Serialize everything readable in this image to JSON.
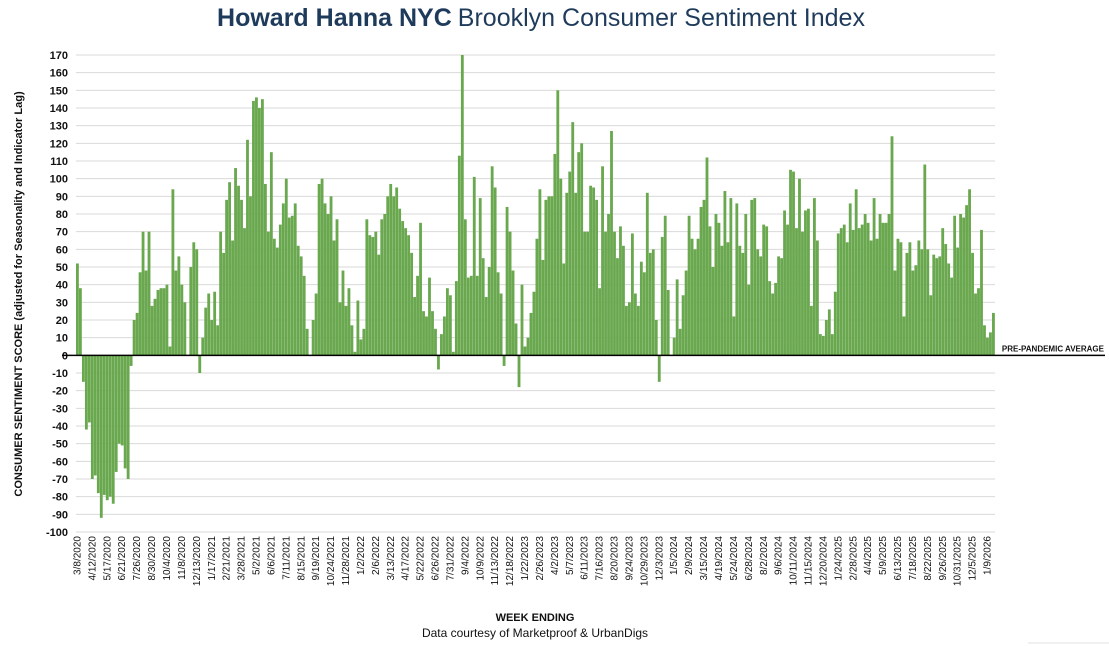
{
  "chart_data": {
    "type": "bar",
    "title_brand": "Howard Hanna NYC",
    "title_rest": "Brooklyn Consumer Sentiment Index",
    "ylabel": "CONSUMER SENTIMENT SCORE (adjusted for Seasonality and Indicator Lag)",
    "xlabel": "WEEK ENDING",
    "source": "Data courtesy of Marketproof & UrbanDigs",
    "reference_line": {
      "value": 0,
      "label": "PRE-PANDEMIC AVERAGE"
    },
    "ylim": [
      -100,
      170
    ],
    "y_ticks": [
      170,
      160,
      150,
      140,
      130,
      120,
      110,
      100,
      90,
      80,
      70,
      60,
      50,
      40,
      30,
      20,
      10,
      0,
      -10,
      -20,
      -30,
      -40,
      -50,
      -60,
      -70,
      -80,
      -90,
      -100
    ],
    "grid": true,
    "colors": {
      "bar": "#6aa84f",
      "title": "#1f3b5c",
      "grid": "#d9d9d9",
      "axis": "#000000"
    },
    "x_tick_labels": [
      "3/8/2020",
      "4/12/2020",
      "5/17/2020",
      "6/21/2020",
      "7/26/2020",
      "8/30/2020",
      "10/4/2020",
      "11/8/2020",
      "12/13/2020",
      "1/17/2021",
      "2/21/2021",
      "3/28/2021",
      "5/2/2021",
      "6/6/2021",
      "7/11/2021",
      "8/15/2021",
      "9/19/2021",
      "10/24/2021",
      "11/28/2021",
      "1/2/2022",
      "2/6/2022",
      "3/13/2022",
      "4/17/2022",
      "5/22/2022",
      "6/26/2022",
      "7/31/2022",
      "9/4/2022",
      "10/9/2022",
      "11/13/2022",
      "12/18/2022",
      "1/22/2023",
      "2/26/2023",
      "4/2/2023",
      "5/7/2023",
      "6/11/2023",
      "7/16/2023",
      "8/20/2023",
      "9/24/2023",
      "10/29/2023",
      "12/3/2023",
      "1/5/2024",
      "2/9/2024",
      "3/15/2024",
      "4/19/2024",
      "5/24/2024",
      "6/28/2024",
      "8/2/2024",
      "9/6/2024",
      "10/11/2024",
      "11/15/2024",
      "12/20/2024",
      "1/24/2025",
      "2/28/2025",
      "4/4/2025",
      "5/9/2025",
      "6/13/2025",
      "7/18/2025",
      "8/22/2025",
      "9/26/2025",
      "10/31/2025",
      "12/5/2025",
      "1/9/2026"
    ],
    "x_tick_start_week": [
      0,
      5,
      10,
      15,
      20,
      25,
      30,
      35,
      40,
      45,
      50,
      55,
      60,
      65,
      70,
      75,
      80,
      85,
      90,
      95,
      100,
      105,
      110,
      115,
      120,
      125,
      130,
      135,
      140,
      145,
      150,
      155,
      160,
      165,
      170,
      175,
      180,
      185,
      190,
      195,
      200,
      205,
      210,
      215,
      220,
      225,
      230,
      235,
      240,
      245,
      250,
      255,
      260,
      265,
      270,
      275,
      280,
      285,
      290,
      295,
      300,
      305
    ],
    "values": [
      52,
      38,
      -15,
      -42,
      -38,
      -70,
      -68,
      -78,
      -92,
      -79,
      -82,
      -80,
      -84,
      -66,
      -50,
      -51,
      -64,
      -70,
      -6,
      20,
      24,
      47,
      70,
      48,
      70,
      28,
      32,
      37,
      38,
      38,
      40,
      5,
      94,
      48,
      56,
      40,
      30,
      0,
      50,
      64,
      60,
      -10,
      10,
      27,
      35,
      20,
      36,
      17,
      70,
      58,
      88,
      98,
      65,
      106,
      96,
      88,
      72,
      122,
      90,
      144,
      146,
      140,
      145,
      97,
      70,
      115,
      66,
      61,
      74,
      86,
      100,
      78,
      79,
      86,
      62,
      56,
      45,
      15,
      0,
      20,
      35,
      97,
      100,
      86,
      80,
      90,
      65,
      77,
      30,
      48,
      28,
      38,
      17,
      2,
      31,
      9,
      15,
      77,
      68,
      67,
      70,
      57,
      77,
      80,
      90,
      97,
      90,
      95,
      83,
      76,
      72,
      68,
      58,
      33,
      45,
      75,
      25,
      22,
      44,
      25,
      15,
      -8,
      12,
      22,
      38,
      34,
      2,
      42,
      113,
      170,
      77,
      44,
      45,
      101,
      45,
      89,
      55,
      33,
      50,
      107,
      95,
      47,
      35,
      -6,
      84,
      70,
      48,
      18,
      -18,
      40,
      5,
      10,
      24,
      36,
      66,
      94,
      54,
      88,
      90,
      90,
      114,
      150,
      100,
      52,
      92,
      104,
      132,
      92,
      115,
      120,
      70,
      70,
      96,
      95,
      88,
      38,
      107,
      70,
      80,
      127,
      70,
      55,
      73,
      62,
      28,
      30,
      69,
      35,
      28,
      53,
      47,
      92,
      58,
      60,
      20,
      -15,
      67,
      79,
      37,
      0,
      10,
      43,
      15,
      34,
      48,
      79,
      66,
      60,
      66,
      84,
      88,
      112,
      73,
      50,
      80,
      75,
      62,
      93,
      64,
      89,
      22,
      86,
      62,
      58,
      80,
      40,
      88,
      89,
      60,
      56,
      74,
      73,
      42,
      35,
      41,
      56,
      55,
      82,
      74,
      105,
      104,
      72,
      100,
      70,
      82,
      83,
      28,
      89,
      65,
      12,
      11,
      20,
      26,
      12,
      36,
      69,
      72,
      74,
      64,
      86,
      71,
      94,
      72,
      74,
      80,
      75,
      65,
      89,
      66,
      80,
      75,
      75,
      80,
      124,
      48,
      66,
      64,
      22,
      58,
      64,
      48,
      51,
      65,
      60,
      108,
      60,
      34,
      57,
      55,
      56,
      72,
      63,
      52,
      44,
      79,
      61,
      80,
      78,
      85,
      94,
      58,
      35,
      38,
      71,
      17,
      10,
      13,
      24
    ]
  }
}
